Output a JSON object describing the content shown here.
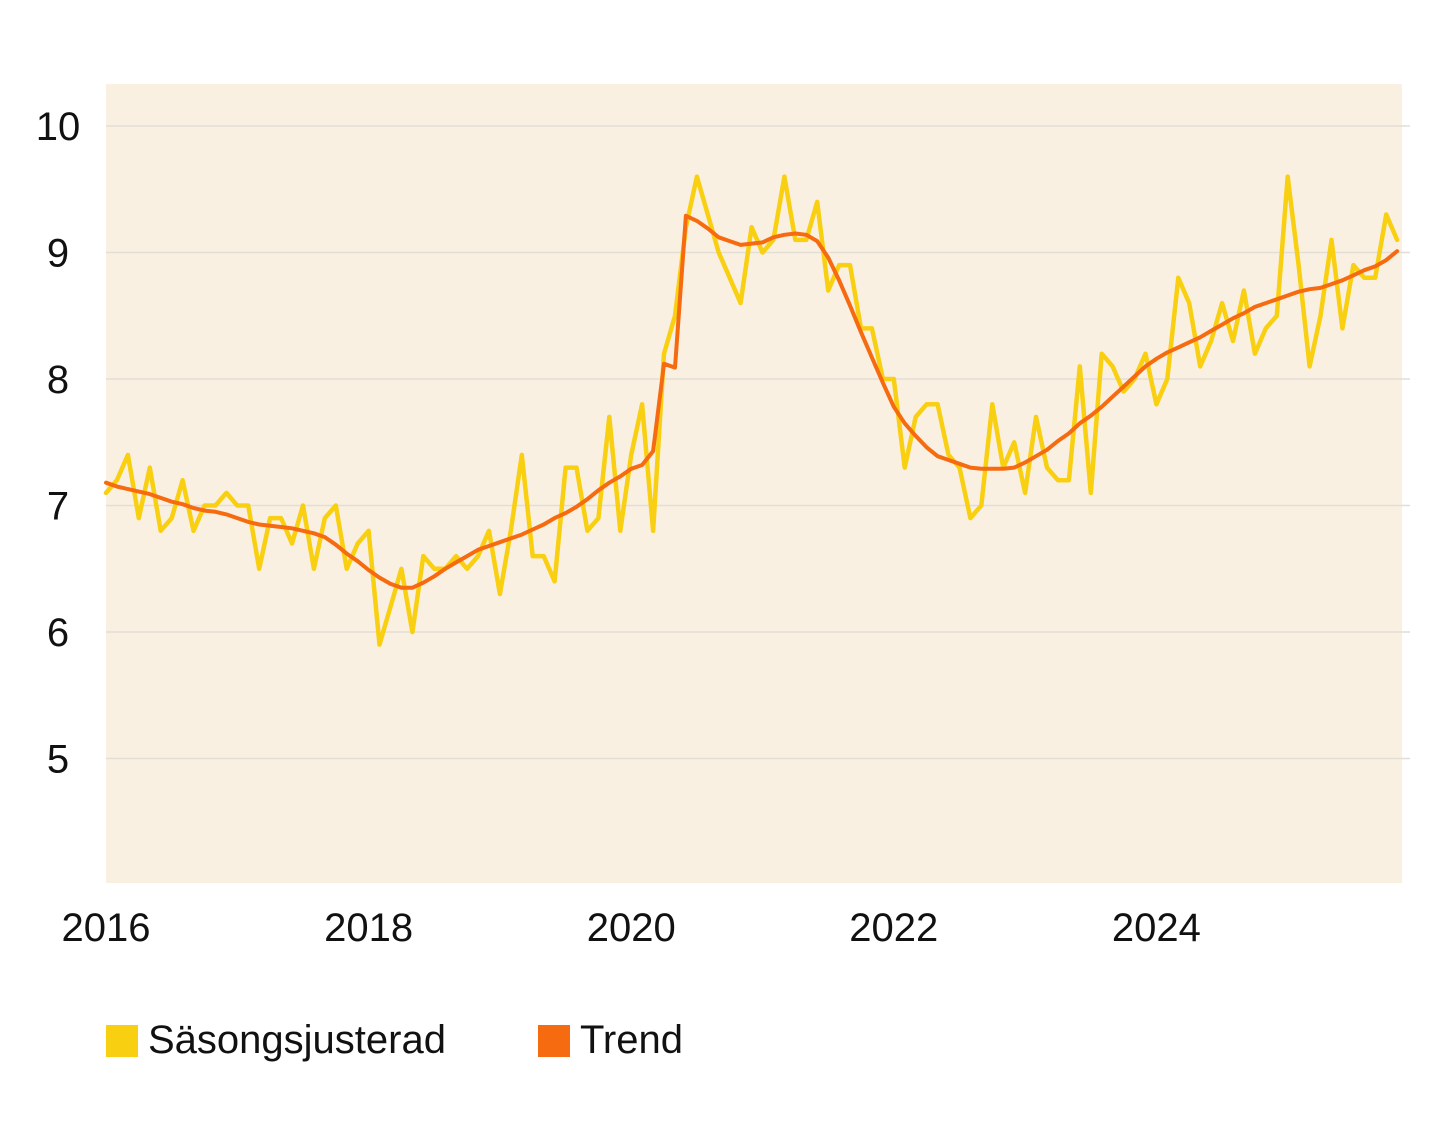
{
  "chart_data": {
    "type": "line",
    "title": "",
    "xlabel": "",
    "ylabel": "",
    "ylim": [
      4,
      10.33
    ],
    "xlim": [
      2016,
      2025.83
    ],
    "y_ticks": [
      "5",
      "6",
      "7",
      "8",
      "9",
      "10"
    ],
    "x_ticks": [
      "2016",
      "2018",
      "2020",
      "2022",
      "2024"
    ],
    "grid": true,
    "legend_position": "bottom-left",
    "background_color": "#faf0e2",
    "series": [
      {
        "name": "Säsongsjusterad",
        "color": "#f9cf12",
        "values": [
          7.1,
          7.2,
          7.4,
          6.9,
          7.3,
          6.8,
          6.9,
          7.2,
          6.8,
          7.0,
          7.0,
          7.1,
          7.0,
          7.0,
          6.5,
          6.9,
          6.9,
          6.7,
          7.0,
          6.5,
          6.9,
          7.0,
          6.5,
          6.7,
          6.8,
          5.9,
          6.2,
          6.5,
          6.0,
          6.6,
          6.5,
          6.5,
          6.6,
          6.5,
          6.6,
          6.8,
          6.3,
          6.8,
          7.4,
          6.6,
          6.6,
          6.4,
          7.3,
          7.3,
          6.8,
          6.9,
          7.7,
          6.8,
          7.4,
          7.8,
          6.8,
          8.2,
          8.5,
          9.2,
          9.6,
          9.3,
          9.0,
          8.8,
          8.6,
          9.2,
          9.0,
          9.1,
          9.6,
          9.1,
          9.1,
          9.4,
          8.7,
          8.9,
          8.9,
          8.4,
          8.4,
          8.0,
          8.0,
          7.3,
          7.7,
          7.8,
          7.8,
          7.4,
          7.3,
          6.9,
          7.0,
          7.8,
          7.3,
          7.5,
          7.1,
          7.7,
          7.3,
          7.2,
          7.2,
          8.1,
          7.1,
          8.2,
          8.1,
          7.9,
          8.0,
          8.2,
          7.8,
          8.0,
          8.8,
          8.6,
          8.1,
          8.3,
          8.6,
          8.3,
          8.7,
          8.2,
          8.4,
          8.5,
          9.6,
          8.9,
          8.1,
          8.5,
          9.1,
          8.4,
          8.9,
          8.8,
          8.8,
          9.3,
          9.1
        ]
      },
      {
        "name": "Trend",
        "color": "#f66a10",
        "values": [
          7.18,
          7.15,
          7.13,
          7.11,
          7.09,
          7.06,
          7.03,
          7.01,
          6.98,
          6.96,
          6.95,
          6.93,
          6.9,
          6.87,
          6.85,
          6.84,
          6.83,
          6.82,
          6.8,
          6.78,
          6.75,
          6.69,
          6.62,
          6.56,
          6.49,
          6.43,
          6.38,
          6.35,
          6.35,
          6.39,
          6.44,
          6.5,
          6.55,
          6.6,
          6.65,
          6.68,
          6.71,
          6.74,
          6.77,
          6.81,
          6.85,
          6.9,
          6.94,
          6.99,
          7.05,
          7.12,
          7.18,
          7.23,
          7.29,
          7.32,
          7.43,
          8.12,
          8.09,
          9.29,
          9.25,
          9.19,
          9.12,
          9.09,
          9.06,
          9.07,
          9.08,
          9.12,
          9.14,
          9.15,
          9.14,
          9.09,
          8.96,
          8.78,
          8.58,
          8.37,
          8.17,
          7.97,
          7.78,
          7.65,
          7.55,
          7.46,
          7.39,
          7.36,
          7.33,
          7.3,
          7.29,
          7.29,
          7.29,
          7.3,
          7.34,
          7.39,
          7.44,
          7.51,
          7.57,
          7.65,
          7.71,
          7.78,
          7.86,
          7.94,
          8.02,
          8.1,
          8.16,
          8.21,
          8.25,
          8.29,
          8.33,
          8.38,
          8.43,
          8.48,
          8.52,
          8.57,
          8.6,
          8.63,
          8.66,
          8.69,
          8.71,
          8.72,
          8.75,
          8.78,
          8.82,
          8.86,
          8.89,
          8.94,
          9.01
        ]
      }
    ]
  }
}
